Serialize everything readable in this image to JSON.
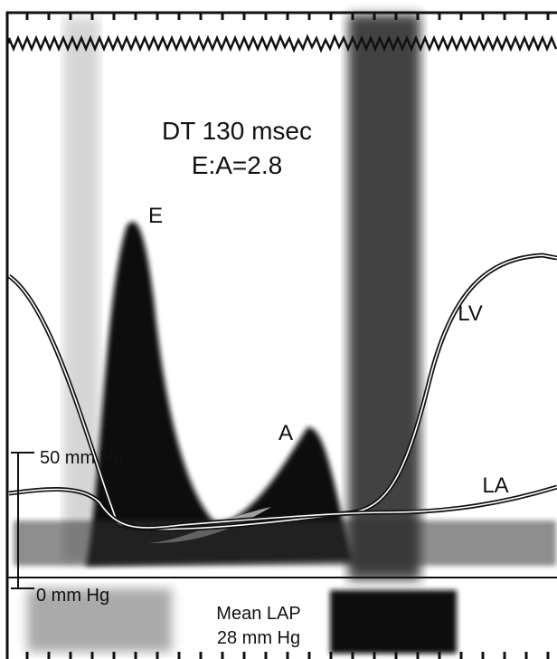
{
  "labels": {
    "dt": "DT 130 msec",
    "ea": "E:A=2.8",
    "e": "E",
    "a": "A",
    "lv": "LV",
    "la": "LA"
  },
  "scale": {
    "top": "50 mm Hg",
    "bottom": "0 mm Hg"
  },
  "footer": {
    "line1": "Mean LAP",
    "line2": "28 mm Hg"
  }
}
